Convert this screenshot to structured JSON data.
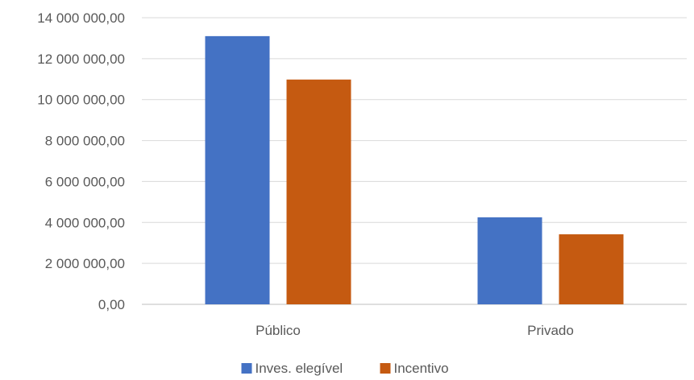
{
  "chart_data": {
    "type": "bar",
    "categories": [
      "Público",
      "Privado"
    ],
    "series": [
      {
        "name": "Inves. elegível",
        "color": "#4472C4",
        "values": [
          13100000,
          4250000
        ]
      },
      {
        "name": "Incentivo",
        "color": "#C55A11",
        "values": [
          10980000,
          3420000
        ]
      }
    ],
    "ylim": [
      0,
      14000000
    ],
    "y_ticks": [
      0,
      2000000,
      4000000,
      6000000,
      8000000,
      10000000,
      12000000,
      14000000
    ],
    "y_tick_labels": [
      "0,00",
      "2 000 000,00",
      "4 000 000,00",
      "6 000 000,00",
      "8 000 000,00",
      "10 000 000,00",
      "12 000 000,00",
      "14 000 000,00"
    ],
    "grid": true,
    "legend_position": "bottom",
    "title": "",
    "xlabel": "",
    "ylabel": ""
  }
}
